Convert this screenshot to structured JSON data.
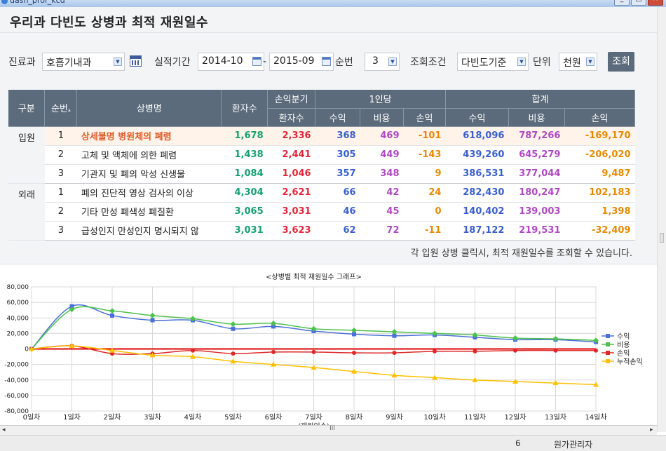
{
  "window": {
    "title": "dash_prof_kcd"
  },
  "page": {
    "title": "우리과 다빈도 상병과 최적 재원일수"
  },
  "filters": {
    "dept_label": "진료과",
    "dept_value": "호흡기내과",
    "period_label": "실적기간",
    "period_from": "2014-10",
    "period_sep": "-",
    "period_to": "2015-09",
    "rank_label": "순번",
    "rank_value": "3",
    "cond_label": "조회조건",
    "cond_value": "다빈도기준",
    "unit_label": "단위",
    "unit_value": "천원",
    "search_button": "조회"
  },
  "table": {
    "headers": {
      "category": "구분",
      "rank": "순번",
      "disease": "상병명",
      "patients": "환자수",
      "quarter_top": "손익분기",
      "quarter_bottom": "환자수",
      "per_person": "1인당",
      "total": "합계",
      "revenue": "수익",
      "cost": "비용",
      "profit": "손익"
    },
    "groups": [
      {
        "name": "입원",
        "rows": [
          {
            "rank": "1",
            "disease": "상세불명 병원체의 폐렴",
            "patients": "1,678",
            "bep": "2,336",
            "pp_rev": "368",
            "pp_cost": "469",
            "pp_profit": "-101",
            "t_rev": "618,096",
            "t_cost": "787,266",
            "t_profit": "-169,170"
          },
          {
            "rank": "2",
            "disease": "고체 및 액체에 의한 폐렴",
            "patients": "1,438",
            "bep": "2,441",
            "pp_rev": "305",
            "pp_cost": "449",
            "pp_profit": "-143",
            "t_rev": "439,260",
            "t_cost": "645,279",
            "t_profit": "-206,020"
          },
          {
            "rank": "3",
            "disease": "기관지 및 폐의 악성 신생물",
            "patients": "1,084",
            "bep": "1,046",
            "pp_rev": "357",
            "pp_cost": "348",
            "pp_profit": "9",
            "t_rev": "386,531",
            "t_cost": "377,044",
            "t_profit": "9,487"
          }
        ]
      },
      {
        "name": "외래",
        "rows": [
          {
            "rank": "1",
            "disease": "폐의 진단적 영상 검사의 이상",
            "patients": "4,304",
            "bep": "2,621",
            "pp_rev": "66",
            "pp_cost": "42",
            "pp_profit": "24",
            "t_rev": "282,430",
            "t_cost": "180,247",
            "t_profit": "102,183"
          },
          {
            "rank": "2",
            "disease": "기타 만성 폐색성 폐질환",
            "patients": "3,065",
            "bep": "3,031",
            "pp_rev": "46",
            "pp_cost": "45",
            "pp_profit": "0",
            "t_rev": "140,402",
            "t_cost": "139,003",
            "t_profit": "1,398"
          },
          {
            "rank": "3",
            "disease": "급성인지 만성인지 명시되지 않",
            "patients": "3,031",
            "bep": "3,623",
            "pp_rev": "62",
            "pp_cost": "72",
            "pp_profit": "-11",
            "t_rev": "187,122",
            "t_cost": "219,531",
            "t_profit": "-32,409"
          }
        ]
      }
    ]
  },
  "note": "각 입원 상병 클릭시, 최적 재원일수를 조회할 수 있습니다.",
  "chart_data": {
    "type": "line",
    "title": "<상병별 최적 재원일수 그래프>",
    "xlabel": "(재원일수)",
    "ylabel": "",
    "categories": [
      "0일차",
      "1일차",
      "2일차",
      "3일차",
      "4일차",
      "5일차",
      "6일차",
      "7일차",
      "8일차",
      "9일차",
      "10일차",
      "11일차",
      "12일차",
      "13일차",
      "14일차"
    ],
    "ylim": [
      -80000,
      80000
    ],
    "yticks": [
      "80,000",
      "60,000",
      "40,000",
      "20,000",
      "0",
      "-20,000",
      "-40,000",
      "-60,000",
      "-80,000"
    ],
    "grid": true,
    "legend": "right",
    "series": [
      {
        "name": "수익",
        "color": "#4a6fd6",
        "marker": "square",
        "values": [
          0,
          55000,
          43000,
          37000,
          37000,
          26000,
          29000,
          23000,
          19000,
          17000,
          18000,
          15000,
          12000,
          12000,
          9000
        ]
      },
      {
        "name": "비용",
        "color": "#4cc24c",
        "marker": "diamond",
        "values": [
          0,
          51000,
          49000,
          43000,
          39000,
          32000,
          33000,
          26000,
          24000,
          22000,
          20000,
          18000,
          14000,
          13000,
          11000
        ]
      },
      {
        "name": "손익",
        "color": "#e02828",
        "marker": "circle",
        "values": [
          0,
          4000,
          -6000,
          -6000,
          -2000,
          -6000,
          -4000,
          -4000,
          -5000,
          -5000,
          -3000,
          -3000,
          -2000,
          -2000,
          -2000
        ]
      },
      {
        "name": "누적손익",
        "color": "#ffc000",
        "marker": "triangle",
        "values": [
          0,
          4000,
          -2000,
          -8000,
          -10000,
          -16000,
          -20000,
          -24000,
          -29000,
          -34000,
          -37000,
          -40000,
          -42000,
          -44000,
          -46000
        ]
      }
    ]
  },
  "status": {
    "left": "6",
    "right": "원가관리자"
  },
  "hscroll": {
    "left": "◂",
    "mid": "III",
    "right": "▸"
  }
}
